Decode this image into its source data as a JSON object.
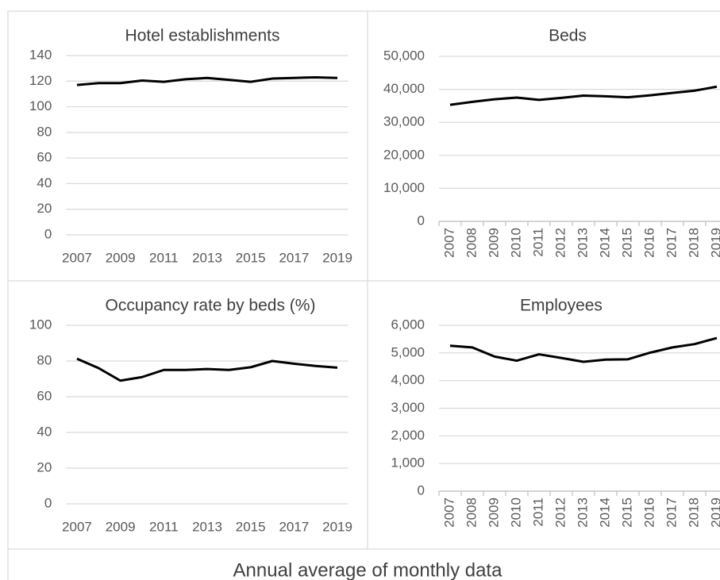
{
  "chart_data": [
    {
      "type": "line",
      "title": "Hotel establishments",
      "categories": [
        "2007",
        null,
        "2009",
        null,
        "2011",
        null,
        "2013",
        null,
        "2015",
        null,
        "2017",
        null,
        "2019"
      ],
      "values": [
        117,
        118.5,
        118.5,
        120.5,
        119.5,
        121.5,
        122.5,
        121,
        119.5,
        122,
        122.5,
        123,
        122.5
      ],
      "color": "#000000",
      "ylim": [
        0,
        140
      ],
      "yticks": [
        0,
        20,
        40,
        60,
        80,
        100,
        120,
        140
      ],
      "grid": true
    },
    {
      "type": "line",
      "title": "Beds",
      "categories": [
        "2007",
        "2008",
        "2009",
        "2010",
        "2011",
        "2012",
        "2013",
        "2014",
        "2015",
        "2016",
        "2017",
        "2018",
        "2019"
      ],
      "values": [
        35300,
        36200,
        37000,
        37500,
        36800,
        37400,
        38100,
        37900,
        37600,
        38200,
        38900,
        39600,
        40800
      ],
      "color": "#000000",
      "ylim": [
        0,
        50000
      ],
      "yticks": [
        0,
        {
          "value": 10000,
          "label": "10,000"
        },
        {
          "value": 20000,
          "label": "20,000"
        },
        {
          "value": 30000,
          "label": "30,000"
        },
        {
          "value": 40000,
          "label": "40,000"
        },
        {
          "value": 50000,
          "label": "50,000"
        }
      ],
      "grid": true
    },
    {
      "type": "line",
      "title": "Occupancy rate by beds (%)",
      "categories": [
        "2007",
        null,
        "2009",
        null,
        "2011",
        null,
        "2013",
        null,
        "2015",
        null,
        "2017",
        null,
        "2019"
      ],
      "values": [
        81.3,
        76,
        69,
        71,
        75,
        75,
        75.5,
        75,
        76.5,
        80,
        78.5,
        77.2,
        76.3
      ],
      "color": "#000000",
      "ylim": [
        0,
        100
      ],
      "yticks": [
        0,
        20,
        40,
        60,
        80,
        100
      ],
      "grid": true
    },
    {
      "type": "line",
      "title": "Employees",
      "categories": [
        "2007",
        "2008",
        "2009",
        "2010",
        "2011",
        "2012",
        "2013",
        "2014",
        "2015",
        "2016",
        "2017",
        "2018",
        "2019"
      ],
      "values": [
        5260,
        5200,
        4870,
        4720,
        4950,
        4820,
        4680,
        4760,
        4770,
        5010,
        5200,
        5320,
        5540
      ],
      "color": "#000000",
      "ylim": [
        0,
        6000
      ],
      "yticks": [
        0,
        {
          "value": 1000,
          "label": "1,000"
        },
        {
          "value": 2000,
          "label": "2,000"
        },
        {
          "value": 3000,
          "label": "3,000"
        },
        {
          "value": 4000,
          "label": "4,000"
        },
        {
          "value": 5000,
          "label": "5,000"
        },
        {
          "value": 6000,
          "label": "6,000"
        }
      ],
      "grid": true
    }
  ],
  "caption": "Annual average of monthly data"
}
